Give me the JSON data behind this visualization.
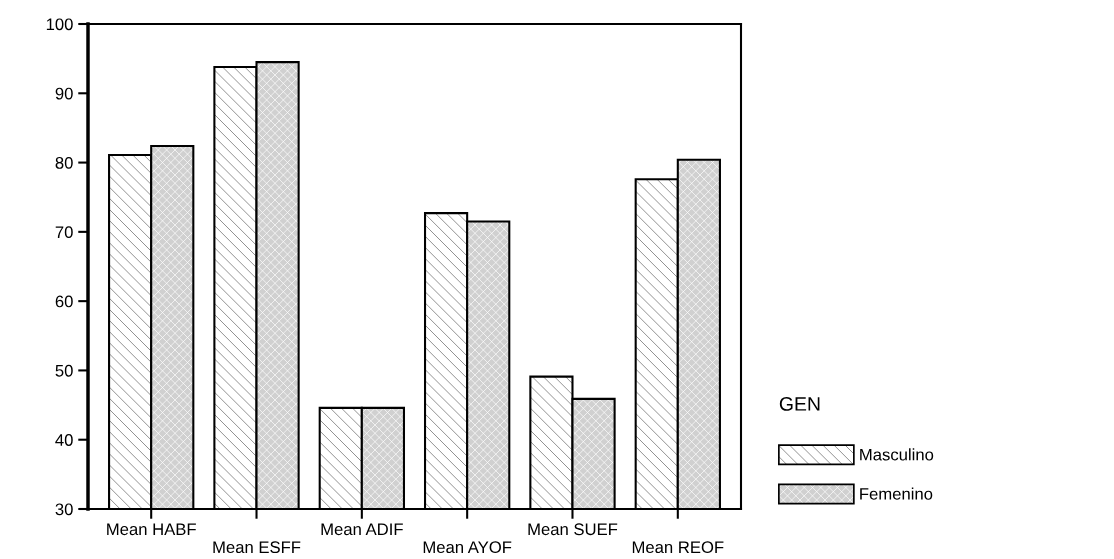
{
  "chart_data": {
    "type": "bar",
    "categories": [
      "Mean HABF",
      "Mean ESFF",
      "Mean ADIF",
      "Mean AYOF",
      "Mean SUEF",
      "Mean REOF"
    ],
    "series": [
      {
        "name": "Masculino",
        "color": "#ffffff",
        "values": [
          81.1,
          93.8,
          44.6,
          72.7,
          49.1,
          77.6
        ]
      },
      {
        "name": "Femenino",
        "color": "#d0d0d0",
        "values": [
          82.4,
          94.5,
          44.6,
          71.5,
          45.9,
          80.4
        ]
      }
    ],
    "legend_title": "GEN",
    "legend": "right",
    "ylim": [
      30,
      100
    ],
    "yticks": [
      30,
      40,
      50,
      60,
      70,
      80,
      90,
      100
    ],
    "grid": false
  }
}
